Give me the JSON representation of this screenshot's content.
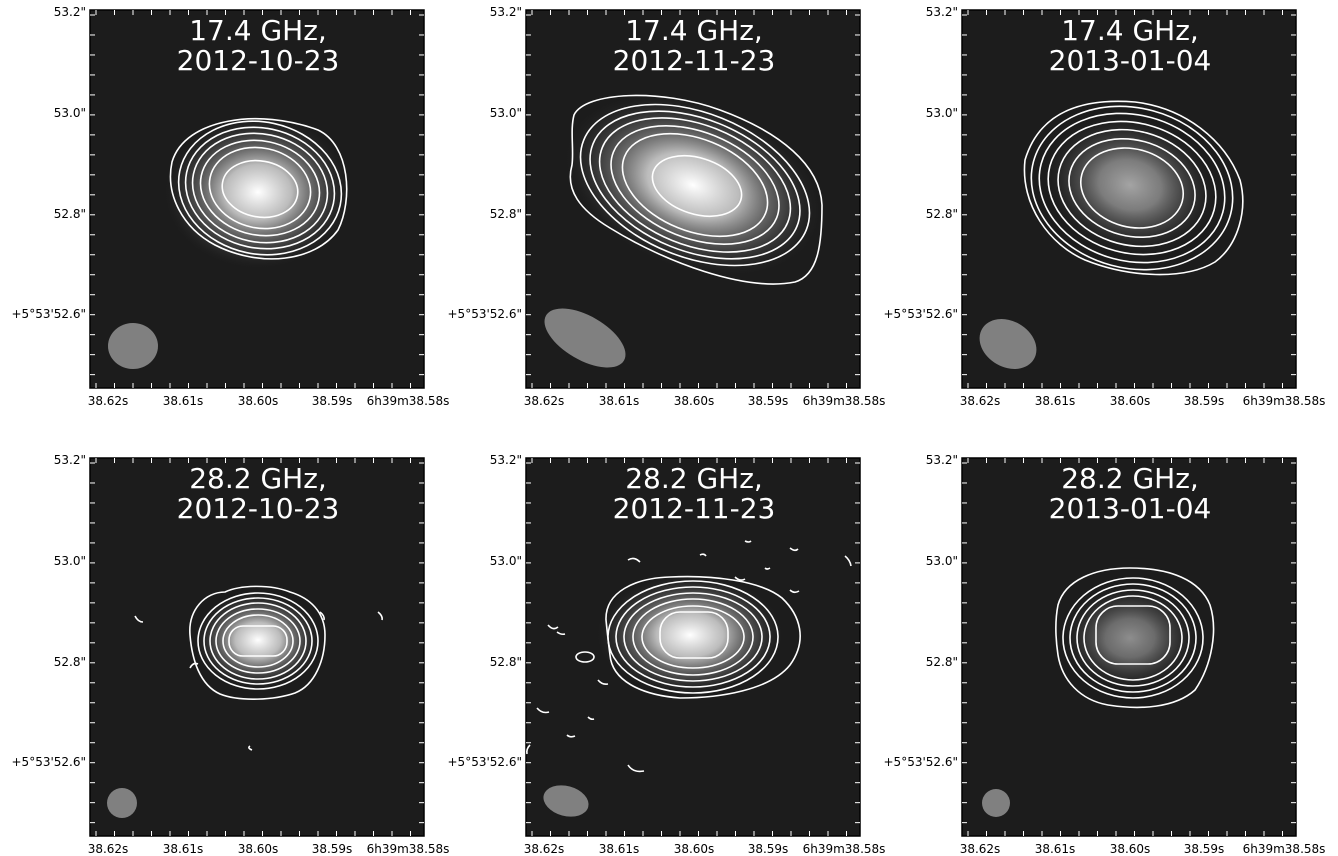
{
  "figure": {
    "panels": [
      {
        "freq": "17.4 GHz,",
        "date": "2012-10-23",
        "peak": 1.0,
        "contour_levels": 8,
        "beam_shape": "elliptical, near-circular"
      },
      {
        "freq": "17.4 GHz,",
        "date": "2012-11-23",
        "peak": 0.9,
        "contour_levels": 9,
        "beam_shape": "elongated, tilted"
      },
      {
        "freq": "17.4 GHz,",
        "date": "2013-01-04",
        "peak": 0.55,
        "contour_levels": 8,
        "beam_shape": "elliptical, tilted"
      },
      {
        "freq": "28.2 GHz,",
        "date": "2012-10-23",
        "peak": 1.0,
        "contour_levels": 8,
        "beam_shape": "circular"
      },
      {
        "freq": "28.2 GHz,",
        "date": "2012-11-23",
        "peak": 1.0,
        "contour_levels": 8,
        "beam_shape": "elliptical"
      },
      {
        "freq": "28.2 GHz,",
        "date": "2013-01-04",
        "peak": 0.45,
        "contour_levels": 8,
        "beam_shape": "circular"
      }
    ],
    "y_tick_labels": [
      "53.2\"",
      "53.0\"",
      "52.8\"",
      "+5°53'52.6\""
    ],
    "x_tick_labels": [
      "38.62s",
      "38.61s",
      "38.60s",
      "38.59s",
      "6h39m38.58s"
    ],
    "colors": {
      "background": "#1c1c1c",
      "contour": "#ffffff",
      "beam": "#808080",
      "frame": "#000000"
    }
  }
}
